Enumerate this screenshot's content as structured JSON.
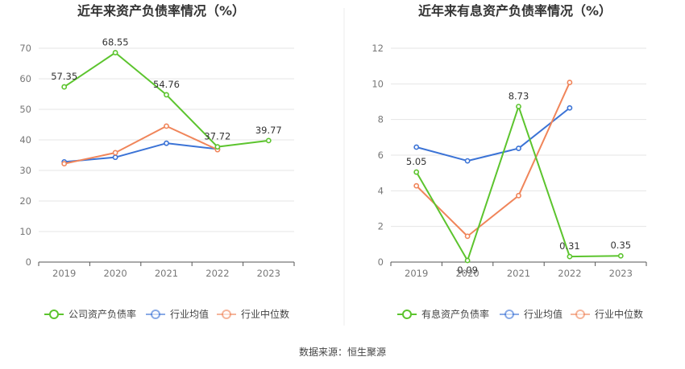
{
  "colors": {
    "company": "#5cc42e",
    "industry_avg": "#3b73d6",
    "industry_median": "#f0855a",
    "grid": "#e4e4e4",
    "axis": "#555555",
    "divider": "#eeeeee"
  },
  "source_label": "数据来源：恒生聚源",
  "chart_data": [
    {
      "type": "line",
      "title": "近年来资产负债率情况（%）",
      "categories": [
        "2019",
        "2020",
        "2021",
        "2022",
        "2023"
      ],
      "ylim": [
        0,
        70
      ],
      "yticks": [
        0,
        10,
        20,
        30,
        40,
        50,
        60,
        70
      ],
      "grid": true,
      "legend_position": "bottom",
      "series": [
        {
          "name": "公司资产负债率",
          "color_key": "company",
          "values": [
            57.35,
            68.55,
            54.76,
            37.72,
            39.77
          ],
          "labels": [
            "57.35",
            "68.55",
            "54.76",
            "37.72",
            "39.77"
          ]
        },
        {
          "name": "行业均值",
          "color_key": "industry_avg",
          "values": [
            32.8,
            34.3,
            38.9,
            37.0,
            null
          ]
        },
        {
          "name": "行业中位数",
          "color_key": "industry_median",
          "values": [
            32.2,
            35.8,
            44.5,
            36.8,
            null
          ]
        }
      ]
    },
    {
      "type": "line",
      "title": "近年来有息资产负债率情况（%）",
      "categories": [
        "2019",
        "2020",
        "2021",
        "2022",
        "2023"
      ],
      "ylim": [
        0,
        12
      ],
      "yticks": [
        0,
        2,
        4,
        6,
        8,
        10,
        12
      ],
      "grid": true,
      "legend_position": "bottom",
      "series": [
        {
          "name": "有息资产负债率",
          "color_key": "company",
          "values": [
            5.05,
            0.09,
            8.73,
            0.31,
            0.35
          ],
          "labels": [
            "5.05",
            "0.09",
            "8.73",
            "0.31",
            "0.35"
          ]
        },
        {
          "name": "行业均值",
          "color_key": "industry_avg",
          "values": [
            6.45,
            5.68,
            6.38,
            8.65,
            null
          ]
        },
        {
          "name": "行业中位数",
          "color_key": "industry_median",
          "values": [
            4.28,
            1.45,
            3.73,
            10.08,
            null
          ]
        }
      ]
    }
  ]
}
